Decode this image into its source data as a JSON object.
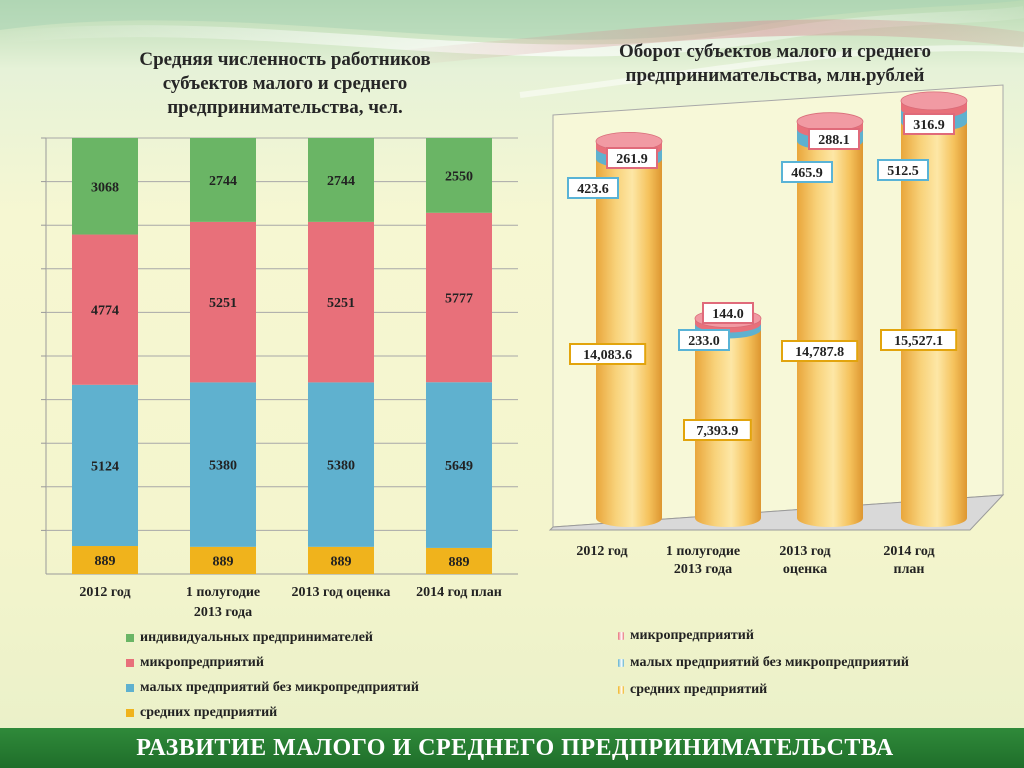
{
  "colors": {
    "individual": "#6ab565",
    "micro": "#e8707a",
    "small": "#5fb1cf",
    "medium": "#f0b31c",
    "cylinder": "#f6c45c",
    "footer": "#237230"
  },
  "footer": {
    "text": "РАЗВИТИЕ МАЛОГО И СРЕДНЕГО ПРЕДПРИНИМАТЕЛЬСТВА"
  },
  "chart_data": [
    {
      "type": "bar",
      "stacked": true,
      "title": "Средняя численность работников субъектов малого и среднего предпринимательства, чел.",
      "categories": [
        "2012 год",
        "1  полугодие 2013 года",
        "2013 год оценка",
        "2014 год план"
      ],
      "category_lines": [
        [
          "2012 год"
        ],
        [
          "1  полугодие",
          "2013 года"
        ],
        [
          "2013 год оценка"
        ],
        [
          "2014 год план"
        ]
      ],
      "legend_placement": "bottom",
      "grid": true,
      "series": [
        {
          "name": "средних предприятий",
          "key": "medium",
          "values": [
            889,
            889,
            889,
            889
          ]
        },
        {
          "name": "малых предприятий без микропредприятий",
          "key": "small",
          "values": [
            5124,
            5380,
            5380,
            5649
          ]
        },
        {
          "name": "микропредприятий",
          "key": "micro",
          "values": [
            4774,
            5251,
            5251,
            5777
          ]
        },
        {
          "name": "индивидуальных предпринимателей",
          "key": "individual",
          "values": [
            3068,
            2744,
            2744,
            2550
          ]
        }
      ],
      "legend": [
        {
          "label": "индивидуальных предпринимателей",
          "key": "individual"
        },
        {
          "label": "микропредприятий",
          "key": "micro"
        },
        {
          "label": "малых предприятий без микропредприятий",
          "key": "small"
        },
        {
          "label": "средних предприятий",
          "key": "medium"
        }
      ]
    },
    {
      "type": "bar",
      "style": "3d-cylinder",
      "stacked": true,
      "title": "Оборот субъектов малого и среднего предпринимательства, млн.рублей",
      "categories": [
        "2012 год",
        "1  полугодие 2013 года",
        "2013 год оценка",
        "2014 год план"
      ],
      "category_lines": [
        [
          "2012 год"
        ],
        [
          "1  полугодие",
          "2013 года"
        ],
        [
          "2013 год",
          "оценка"
        ],
        [
          "2014 год",
          "план"
        ]
      ],
      "legend_placement": "bottom",
      "series": [
        {
          "name": "средних предприятий",
          "key": "medium",
          "values": [
            14083.6,
            7393.9,
            14787.8,
            15527.1
          ],
          "labels": [
            "14,083.6",
            "7,393.9",
            "14,787.8",
            "15,527.1"
          ]
        },
        {
          "name": "малых предприятий без микропредприятий",
          "key": "small",
          "values": [
            423.6,
            233.0,
            465.9,
            512.5
          ],
          "labels": [
            "423.6",
            "233.0",
            "465.9",
            "512.5"
          ]
        },
        {
          "name": "микропредприятий",
          "key": "micro",
          "values": [
            261.9,
            144.0,
            288.1,
            316.9
          ],
          "labels": [
            "261.9",
            "144.0",
            "288.1",
            "316.9"
          ]
        }
      ],
      "legend": [
        {
          "label": "микропредприятий",
          "key": "micro"
        },
        {
          "label": "малых предприятий без микропредприятий",
          "key": "small"
        },
        {
          "label": "средних предприятий",
          "key": "medium"
        }
      ]
    }
  ]
}
